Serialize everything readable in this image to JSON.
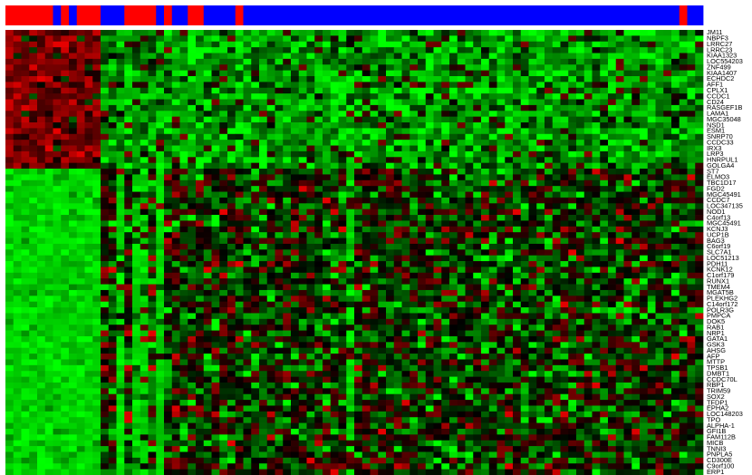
{
  "chart_data": {
    "type": "heatmap",
    "title": "",
    "xlabel": "",
    "ylabel": "",
    "legend": "none",
    "grid": false,
    "colors": {
      "high": "#e00000",
      "mid": "#000000",
      "low": "#00ff00",
      "class_a": "#ff0000",
      "class_b": "#0000ff",
      "background": "#ffffff"
    },
    "value_range": [
      -1,
      1
    ],
    "n_columns": 88,
    "column_class_runs": [
      [
        "a",
        6
      ],
      [
        "b",
        1
      ],
      [
        "a",
        1
      ],
      [
        "b",
        1
      ],
      [
        "a",
        3
      ],
      [
        "b",
        3
      ],
      [
        "a",
        4
      ],
      [
        "b",
        1
      ],
      [
        "a",
        1
      ],
      [
        "b",
        2
      ],
      [
        "a",
        2
      ],
      [
        "b",
        4
      ],
      [
        "a",
        1
      ],
      [
        "b",
        55
      ],
      [
        "a",
        1
      ],
      [
        "b",
        2
      ]
    ],
    "upper_cluster_rows": 24,
    "row_labels": [
      "JM11",
      "NBPF3",
      "LRRC27",
      "LRRC23",
      "KIAA1323",
      "LOC554203",
      "ZNF499",
      "KIAA1407",
      "ECHDC2",
      "AFF1",
      "CPLX1",
      "CCDC1",
      "CD24",
      "RASGEF1B",
      "LAMA1",
      "MGC35048",
      "NSD1",
      "ESM1",
      "SNRP70",
      "CCDC33",
      "IRX3",
      "LRP3",
      "HNRPUL1",
      "GOLGA4",
      "ST7",
      "ELMO3",
      "TBC1D17",
      "FGD2",
      "MGC45491",
      "CCDC7",
      "LOC347135",
      "NOD1",
      "C4orf13",
      "MGC45491",
      "KCNJ3",
      "UCP1B",
      "BAG3",
      "C6orf19",
      "SLC7A1",
      "LOC51213",
      "PDH11",
      "KCNK12",
      "C1orf179",
      "RUNX1",
      "TMEM4",
      "MGAT5B",
      "PLEKHG2",
      "C14orf172",
      "POLR3G",
      "PMPCA",
      "DOK5",
      "RAB1",
      "NRP1",
      "GATA1",
      "GSK3",
      "AHSG",
      "AFP",
      "MTTP",
      "TPSB1",
      "DMBT1",
      "CCDC70L",
      "RBP1",
      "TRIM59",
      "SOX2",
      "TFDP1",
      "EPHA2",
      "LOC148203",
      "TPO",
      "ALPHA-1",
      "GFI1B",
      "FAM112B",
      "MICB",
      "TNNI3",
      "PNPLA5",
      "CD300E",
      "C9orf100",
      "ERP1"
    ],
    "cells": "seeded pseudo-random matrix: rows 0-23 high (red) in columns 0-11 and low (green) elsewhere; rows 24-76 low (green) in columns 0-11 and mixed red/black/green elsewhere; bright green streaks in columns 14, 16, 17, 19 and 43"
  }
}
